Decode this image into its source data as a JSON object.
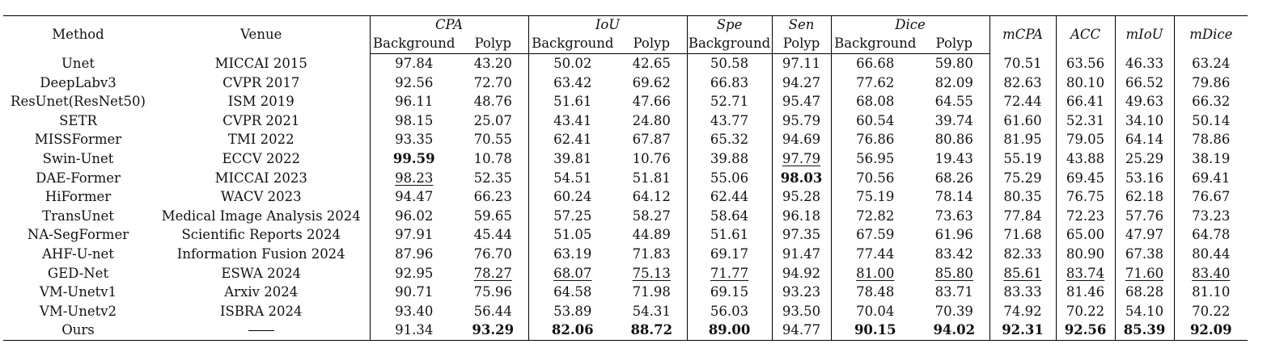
{
  "header": {
    "method": "Method",
    "venue": "Venue",
    "groups": [
      "CPA",
      "IoU",
      "Spe",
      "Sen",
      "Dice"
    ],
    "subs": [
      "Background",
      "Polyp",
      "Background",
      "Polyp",
      "Background",
      "Polyp",
      "Background",
      "Polyp"
    ],
    "summary": [
      "mCPA",
      "ACC",
      "mIoU",
      "mDice"
    ]
  },
  "rows": [
    {
      "method": "Unet",
      "venue": "MICCAI 2015",
      "cells": [
        "97.84",
        "43.20",
        "50.02",
        "42.65",
        "50.58",
        "97.11",
        "66.68",
        "59.80",
        "70.51",
        "63.56",
        "46.33",
        "63.24"
      ]
    },
    {
      "method": "DeepLabv3",
      "venue": "CVPR 2017",
      "cells": [
        "92.56",
        "72.70",
        "63.42",
        "69.62",
        "66.83",
        "94.27",
        "77.62",
        "82.09",
        "82.63",
        "80.10",
        "66.52",
        "79.86"
      ]
    },
    {
      "method": "ResUnet(ResNet50)",
      "venue": "ISM 2019",
      "cells": [
        "96.11",
        "48.76",
        "51.61",
        "47.66",
        "52.71",
        "95.47",
        "68.08",
        "64.55",
        "72.44",
        "66.41",
        "49.63",
        "66.32"
      ]
    },
    {
      "method": "SETR",
      "venue": "CVPR 2021",
      "cells": [
        "98.15",
        "25.07",
        "43.41",
        "24.80",
        "43.77",
        "95.79",
        "60.54",
        "39.74",
        "61.60",
        "52.31",
        "34.10",
        "50.14"
      ]
    },
    {
      "method": "MISSFormer",
      "venue": "TMI 2022",
      "cells": [
        "93.35",
        "70.55",
        "62.41",
        "67.87",
        "65.32",
        "94.69",
        "76.86",
        "80.86",
        "81.95",
        "79.05",
        "64.14",
        "78.86"
      ]
    },
    {
      "method": "Swin-Unet",
      "venue": "ECCV 2022",
      "cells": [
        "99.59",
        "10.78",
        "39.81",
        "10.76",
        "39.88",
        "97.79",
        "56.95",
        "19.43",
        "55.19",
        "43.88",
        "25.29",
        "38.19"
      ]
    },
    {
      "method": "DAE-Former",
      "venue": "MICCAI 2023",
      "cells": [
        "98.23",
        "52.35",
        "54.51",
        "51.81",
        "55.06",
        "98.03",
        "70.56",
        "68.26",
        "75.29",
        "69.45",
        "53.16",
        "69.41"
      ]
    },
    {
      "method": "HiFormer",
      "venue": "WACV 2023",
      "cells": [
        "94.47",
        "66.23",
        "60.24",
        "64.12",
        "62.44",
        "95.28",
        "75.19",
        "78.14",
        "80.35",
        "76.75",
        "62.18",
        "76.67"
      ]
    },
    {
      "method": "TransUnet",
      "venue": "Medical Image Analysis 2024",
      "cells": [
        "96.02",
        "59.65",
        "57.25",
        "58.27",
        "58.64",
        "96.18",
        "72.82",
        "73.63",
        "77.84",
        "72.23",
        "57.76",
        "73.23"
      ]
    },
    {
      "method": "NA-SegFormer",
      "venue": "Scientific Reports 2024",
      "cells": [
        "97.91",
        "45.44",
        "51.05",
        "44.89",
        "51.61",
        "97.35",
        "67.59",
        "61.96",
        "71.68",
        "65.00",
        "47.97",
        "64.78"
      ]
    },
    {
      "method": "AHF-U-net",
      "venue": "Information Fusion 2024",
      "cells": [
        "87.96",
        "76.70",
        "63.19",
        "71.83",
        "69.17",
        "91.47",
        "77.44",
        "83.42",
        "82.33",
        "80.90",
        "67.38",
        "80.44"
      ]
    },
    {
      "method": "GED-Net",
      "venue": "ESWA 2024",
      "cells": [
        "92.95",
        "78.27",
        "68.07",
        "75.13",
        "71.77",
        "94.92",
        "81.00",
        "85.80",
        "85.61",
        "83.74",
        "71.60",
        "83.40"
      ]
    },
    {
      "method": "VM-Unetv1",
      "venue": "Arxiv 2024",
      "cells": [
        "90.71",
        "75.96",
        "64.58",
        "71.98",
        "69.15",
        "93.23",
        "78.48",
        "83.71",
        "83.33",
        "81.46",
        "68.28",
        "81.10"
      ]
    },
    {
      "method": "VM-Unetv2",
      "venue": "ISBRA 2024",
      "cells": [
        "93.40",
        "56.44",
        "53.89",
        "54.31",
        "56.03",
        "93.50",
        "70.04",
        "70.39",
        "74.92",
        "70.22",
        "54.10",
        "70.22"
      ]
    },
    {
      "method": "Ours",
      "venue": "",
      "cells": [
        "91.34",
        "93.29",
        "82.06",
        "88.72",
        "89.00",
        "94.77",
        "90.15",
        "94.02",
        "92.31",
        "92.56",
        "85.39",
        "92.09"
      ]
    }
  ],
  "bold": [
    [
      5,
      0
    ],
    [
      6,
      5
    ],
    [
      14,
      1
    ],
    [
      14,
      2
    ],
    [
      14,
      3
    ],
    [
      14,
      4
    ],
    [
      14,
      6
    ],
    [
      14,
      7
    ],
    [
      14,
      8
    ],
    [
      14,
      9
    ],
    [
      14,
      10
    ],
    [
      14,
      11
    ]
  ],
  "underline": [
    [
      6,
      0
    ],
    [
      5,
      5
    ],
    [
      11,
      1
    ],
    [
      11,
      2
    ],
    [
      11,
      3
    ],
    [
      11,
      4
    ],
    [
      11,
      6
    ],
    [
      11,
      7
    ],
    [
      11,
      8
    ],
    [
      11,
      9
    ],
    [
      11,
      10
    ],
    [
      11,
      11
    ]
  ]
}
